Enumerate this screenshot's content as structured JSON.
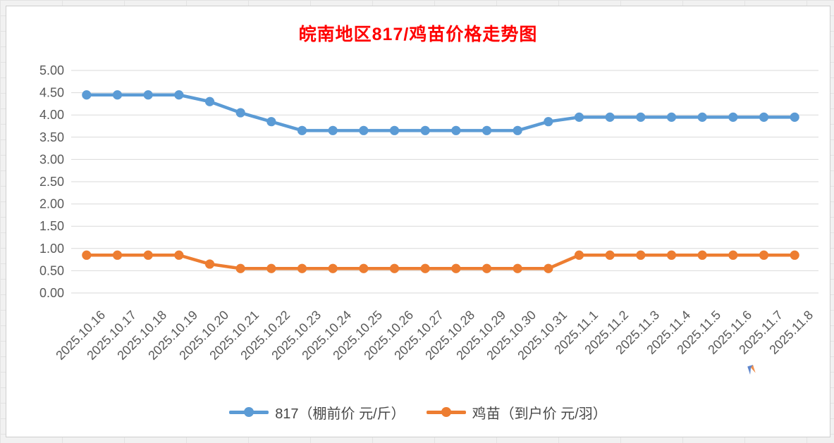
{
  "window": {
    "background": "#f1f1f1",
    "panel_background": "#ffffff",
    "panel_border": "#cfcfcf"
  },
  "chart_data": {
    "type": "line",
    "title": "皖南地区817/鸡苗价格走势图",
    "title_color": "#FF0000",
    "categories": [
      "2025.10.16",
      "2025.10.17",
      "2025.10.18",
      "2025.10.19",
      "2025.10.20",
      "2025.10.21",
      "2025.10.22",
      "2025.10.23",
      "2025.10.24",
      "2025.10.25",
      "2025.10.26",
      "2025.10.27",
      "2025.10.28",
      "2025.10.29",
      "2025.10.30",
      "2025.10.31",
      "2025.11.1",
      "2025.11.2",
      "2025.11.3",
      "2025.11.4",
      "2025.11.5",
      "2025.11.6",
      "2025.11.7",
      "2025.11.8"
    ],
    "series": [
      {
        "name": "817（棚前价 元/斤）",
        "color": "#5B9BD5",
        "values": [
          4.45,
          4.45,
          4.45,
          4.45,
          4.3,
          4.05,
          3.85,
          3.65,
          3.65,
          3.65,
          3.65,
          3.65,
          3.65,
          3.65,
          3.65,
          3.85,
          3.95,
          3.95,
          3.95,
          3.95,
          3.95,
          3.95,
          3.95,
          3.95
        ]
      },
      {
        "name": "鸡苗（到户价 元/羽）",
        "color": "#ED7D31",
        "values": [
          0.85,
          0.85,
          0.85,
          0.85,
          0.65,
          0.55,
          0.55,
          0.55,
          0.55,
          0.55,
          0.55,
          0.55,
          0.55,
          0.55,
          0.55,
          0.55,
          0.85,
          0.85,
          0.85,
          0.85,
          0.85,
          0.85,
          0.85,
          0.85
        ]
      }
    ],
    "y_axis": {
      "min": 0,
      "max": 5,
      "step": 0.5,
      "tick_labels": [
        "5.00",
        "4.50",
        "4.00",
        "3.50",
        "3.00",
        "2.50",
        "2.00",
        "1.50",
        "1.00",
        "0.50",
        "0.00"
      ]
    },
    "x_axis": {
      "tick_rotation": 45
    },
    "grid": true,
    "legend_position": "bottom",
    "axis_label_color": "#595959",
    "gridline_color": "#D9D9D9"
  }
}
